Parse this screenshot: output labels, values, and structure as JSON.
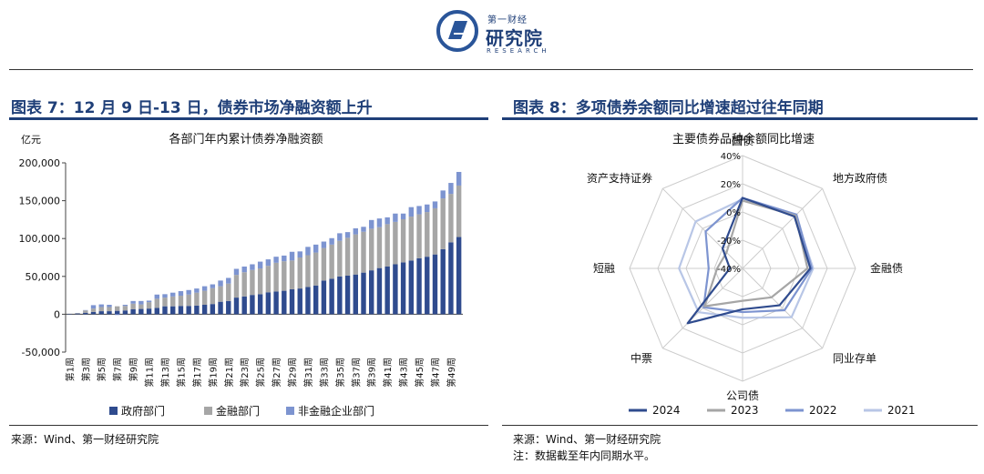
{
  "header": {
    "logo_top": "第一财经",
    "logo_main": "研究院",
    "logo_sub": "RESEARCH"
  },
  "figures": {
    "fig7": {
      "title": "图表 7：12 月 9 日-13 日，债券市场净融资额上升",
      "source": "来源：Wind、第一财经研究院"
    },
    "fig8": {
      "title": "图表 8：多项债券余额同比增速超过往年同期",
      "source": "来源：Wind、第一财经研究院",
      "note": "注：数据截至年内同期水平。"
    }
  },
  "chart_data": [
    {
      "type": "bar",
      "stacked": true,
      "title": "各部门年内累计债券净融资额",
      "ylabel": "亿元",
      "ylim": [
        -50000,
        200000
      ],
      "yticks": [
        -50000,
        0,
        50000,
        100000,
        150000,
        200000
      ],
      "ytick_labels": [
        "-50,000",
        "0",
        "50,000",
        "100,000",
        "150,000",
        "200,000"
      ],
      "categories": [
        "第1周",
        "第2周",
        "第3周",
        "第4周",
        "第5周",
        "第6周",
        "第7周",
        "第8周",
        "第9周",
        "第10周",
        "第11周",
        "第12周",
        "第13周",
        "第14周",
        "第15周",
        "第16周",
        "第17周",
        "第18周",
        "第19周",
        "第20周",
        "第21周",
        "第22周",
        "第23周",
        "第24周",
        "第25周",
        "第26周",
        "第27周",
        "第28周",
        "第29周",
        "第30周",
        "第31周",
        "第32周",
        "第33周",
        "第34周",
        "第35周",
        "第36周",
        "第37周",
        "第38周",
        "第39周",
        "第40周",
        "第41周",
        "第42周",
        "第43周",
        "第44周",
        "第45周",
        "第46周",
        "第47周",
        "第48周",
        "第49周",
        "第50周"
      ],
      "shown_tick_labels": [
        "第1周",
        "第3周",
        "第5周",
        "第7周",
        "第9周",
        "第11周",
        "第13周",
        "第15周",
        "第17周",
        "第19周",
        "第21周",
        "第23周",
        "第25周",
        "第27周",
        "第29周",
        "第31周",
        "第33周",
        "第35周",
        "第37周",
        "第39周",
        "第41周",
        "第43周",
        "第45周",
        "第47周",
        "第49周"
      ],
      "series": [
        {
          "name": "政府部门",
          "color": "#2f4b8e",
          "values": [
            500,
            1000,
            2000,
            3000,
            4000,
            4000,
            4500,
            5000,
            6500,
            7000,
            7500,
            8500,
            10500,
            10500,
            11000,
            11000,
            11500,
            12500,
            13500,
            16500,
            17500,
            22000,
            23500,
            25500,
            26500,
            29000,
            30000,
            31000,
            33000,
            34000,
            36000,
            38000,
            44500,
            47000,
            50000,
            51000,
            52500,
            55000,
            58000,
            61000,
            63000,
            66000,
            68500,
            71000,
            74000,
            76000,
            79000,
            86000,
            95000,
            102000
          ]
        },
        {
          "name": "金融部门",
          "color": "#a6a6a6",
          "values": [
            0,
            500,
            3000,
            4500,
            5500,
            5500,
            6000,
            6000,
            7500,
            6000,
            8500,
            12000,
            11500,
            13000,
            13500,
            15000,
            17000,
            18500,
            21000,
            20500,
            23000,
            30000,
            32000,
            33000,
            34000,
            35000,
            38000,
            39000,
            38000,
            41000,
            42000,
            43500,
            43000,
            45000,
            47000,
            50000,
            53000,
            54000,
            55000,
            54000,
            56000,
            56000,
            57000,
            58000,
            58000,
            59000,
            61000,
            67000,
            64000,
            68000
          ]
        },
        {
          "name": "非金融企业部门",
          "color": "#7d94d0",
          "values": [
            0,
            0,
            500,
            4500,
            3500,
            3000,
            -1000,
            1500,
            3500,
            4500,
            2000,
            5500,
            4500,
            5000,
            6000,
            6000,
            5500,
            6000,
            5000,
            7500,
            7500,
            8000,
            7500,
            7500,
            9000,
            8500,
            8000,
            7500,
            11500,
            8000,
            11000,
            10500,
            8500,
            8500,
            10000,
            7500,
            8000,
            6500,
            11500,
            11500,
            9000,
            11000,
            7500,
            12500,
            11000,
            10000,
            9000,
            10500,
            14500,
            18000
          ]
        }
      ]
    },
    {
      "type": "radar",
      "title": "主要债券品种余额同比增速",
      "axes": [
        "国债",
        "地方政府债",
        "金融债",
        "同业存单",
        "公司债",
        "中票",
        "短融",
        "资产支持证券"
      ],
      "rlim": [
        -40,
        40
      ],
      "rticks": [
        -40,
        -20,
        0,
        20,
        40
      ],
      "rtick_labels": [
        "-40%",
        "-20%",
        "0%",
        "20%",
        "40%"
      ],
      "series": [
        {
          "name": "2024",
          "color": "#2f4b8e",
          "values": [
            10,
            12,
            8,
            -3,
            -11,
            15,
            -31,
            -20
          ]
        },
        {
          "name": "2023",
          "color": "#a6a6a6",
          "values": [
            8,
            13,
            6,
            -11,
            -17,
            -2,
            -22,
            -24
          ]
        },
        {
          "name": "2022",
          "color": "#7d94d0",
          "values": [
            10,
            14,
            9,
            2,
            -9,
            -1,
            -16,
            -3
          ]
        },
        {
          "name": "2021",
          "color": "#b8c6e6",
          "values": [
            9,
            13,
            10,
            9,
            -5,
            4,
            5,
            7
          ]
        }
      ]
    }
  ]
}
